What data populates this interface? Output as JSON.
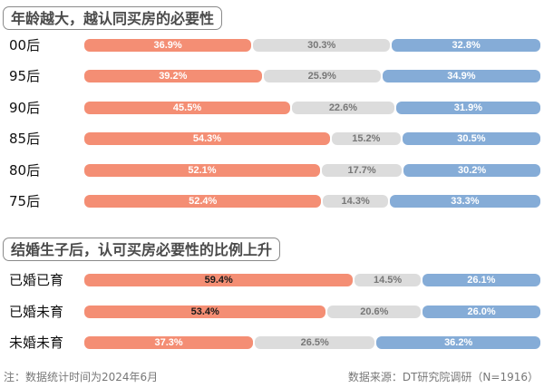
{
  "chart_data": [
    {
      "type": "bar",
      "stacked": true,
      "orientation": "horizontal",
      "normalized_percent": true,
      "title": "年龄越大，越认同买房的必要性",
      "categories": [
        "00后",
        "95后",
        "90后",
        "85后",
        "80后",
        "75后"
      ],
      "series": [
        {
          "name": "segment_1",
          "color": "#f48e74",
          "values": [
            36.9,
            39.2,
            45.5,
            54.3,
            52.1,
            52.4
          ]
        },
        {
          "name": "segment_2",
          "color": "#dcdcdc",
          "values": [
            30.3,
            25.9,
            22.6,
            15.2,
            17.7,
            14.3
          ]
        },
        {
          "name": "segment_3",
          "color": "#85acd7",
          "values": [
            32.8,
            34.9,
            31.9,
            30.5,
            30.2,
            33.3
          ]
        }
      ],
      "labels": {
        "segment_1": [
          "36.9%",
          "39.2%",
          "45.5%",
          "54.3%",
          "52.1%",
          "52.4%"
        ],
        "segment_2": [
          "30.3%",
          "25.9%",
          "22.6%",
          "15.2%",
          "17.7%",
          "14.3%"
        ],
        "segment_3": [
          "32.8%",
          "34.9%",
          "31.9%",
          "30.5%",
          "30.2%",
          "33.3%"
        ]
      },
      "xlabel": "",
      "ylabel": "",
      "legend": "none",
      "grid": false
    },
    {
      "type": "bar",
      "stacked": true,
      "orientation": "horizontal",
      "normalized_percent": true,
      "title": "结婚生子后，认可买房必要性的比例上升",
      "categories": [
        "已婚已育",
        "已婚未育",
        "未婚未育"
      ],
      "series": [
        {
          "name": "segment_1",
          "color": "#f48e74",
          "values": [
            59.4,
            53.4,
            37.3
          ]
        },
        {
          "name": "segment_2",
          "color": "#dcdcdc",
          "values": [
            14.5,
            20.6,
            26.5
          ]
        },
        {
          "name": "segment_3",
          "color": "#85acd7",
          "values": [
            26.1,
            26.0,
            36.2
          ]
        }
      ],
      "labels": {
        "segment_1": [
          "59.4%",
          "53.4%",
          "37.3%"
        ],
        "segment_2": [
          "14.5%",
          "20.6%",
          "26.5%"
        ],
        "segment_3": [
          "26.1%",
          "26.0%",
          "36.2%"
        ]
      },
      "xlabel": "",
      "ylabel": "",
      "legend": "none",
      "grid": false
    }
  ],
  "section1": {
    "title": "年龄越大，越认同买房的必要性",
    "rows": [
      {
        "label": "00后",
        "v": [
          36.9,
          30.3,
          32.8
        ],
        "t": [
          "36.9%",
          "30.3%",
          "32.8%"
        ]
      },
      {
        "label": "95后",
        "v": [
          39.2,
          25.9,
          34.9
        ],
        "t": [
          "39.2%",
          "25.9%",
          "34.9%"
        ]
      },
      {
        "label": "90后",
        "v": [
          45.5,
          22.6,
          31.9
        ],
        "t": [
          "45.5%",
          "22.6%",
          "31.9%"
        ]
      },
      {
        "label": "85后",
        "v": [
          54.3,
          15.2,
          30.5
        ],
        "t": [
          "54.3%",
          "15.2%",
          "30.5%"
        ]
      },
      {
        "label": "80后",
        "v": [
          52.1,
          17.7,
          30.2
        ],
        "t": [
          "52.1%",
          "17.7%",
          "30.2%"
        ]
      },
      {
        "label": "75后",
        "v": [
          52.4,
          14.3,
          33.3
        ],
        "t": [
          "52.4%",
          "14.3%",
          "33.3%"
        ]
      }
    ]
  },
  "section2": {
    "title": "结婚生子后，认可买房必要性的比例上升",
    "rows": [
      {
        "label": "已婚已育",
        "v": [
          59.4,
          14.5,
          26.1
        ],
        "t": [
          "59.4%",
          "14.5%",
          "26.1%"
        ],
        "dark_first": true
      },
      {
        "label": "已婚未育",
        "v": [
          53.4,
          20.6,
          26.0
        ],
        "t": [
          "53.4%",
          "20.6%",
          "26.0%"
        ],
        "dark_first": true
      },
      {
        "label": "未婚未育",
        "v": [
          37.3,
          26.5,
          36.2
        ],
        "t": [
          "37.3%",
          "26.5%",
          "36.2%"
        ],
        "dark_first": false
      }
    ]
  },
  "footer": {
    "note": "注：数据统计时间为2024年6月",
    "source": "数据来源：DT研究院调研（N=1916）"
  }
}
